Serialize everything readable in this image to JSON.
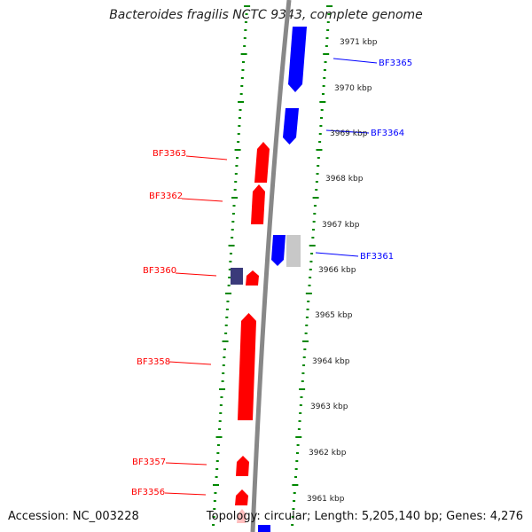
{
  "title": "Bacteroides fragilis NCTC 9343, complete genome",
  "accession": "Accession: NC_003228",
  "summary": "Topology: circular; Length: 5,205,140 bp; Genes: 4,276",
  "colors": {
    "forward": "#ff0000",
    "reverse": "#0000ff",
    "other": "#3a3a7a",
    "pseudo": "#c8c8c8",
    "ticks": "#008800",
    "backbone": "#888888"
  },
  "scale": {
    "unit": "kbp",
    "labels": [
      "3971 kbp",
      "3970 kbp",
      "3969 kbp",
      "3968 kbp",
      "3967 kbp",
      "3966 kbp",
      "3965 kbp",
      "3964 kbp",
      "3963 kbp",
      "3962 kbp",
      "3961 kbp"
    ]
  },
  "genes": {
    "reverse_strand": [
      "BF3365",
      "BF3364",
      "BF3361"
    ],
    "forward_strand": [
      "BF3363",
      "BF3362",
      "BF3360",
      "BF3358",
      "BF3357",
      "BF3356"
    ]
  }
}
